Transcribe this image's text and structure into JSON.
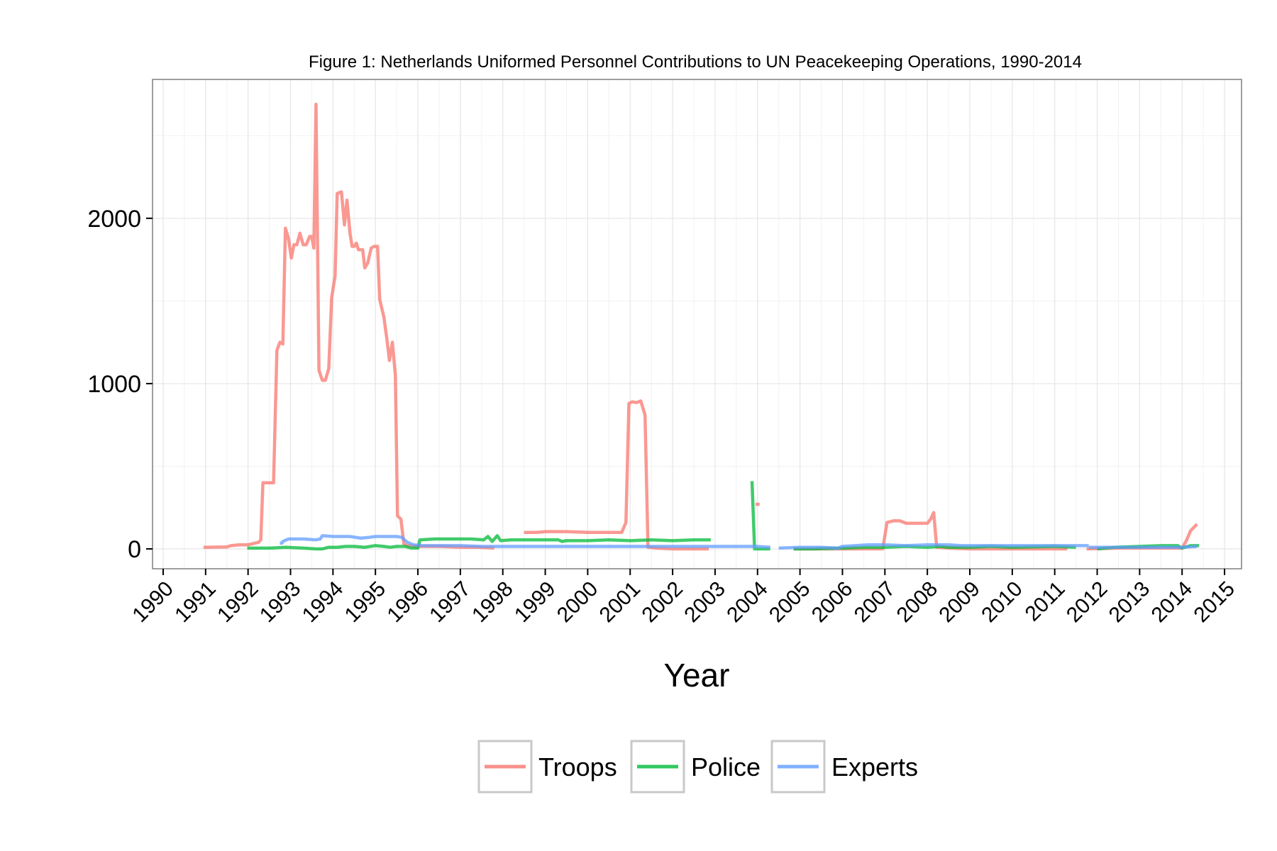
{
  "chart_data": {
    "type": "line",
    "title": "Figure 1: Netherlands Uniformed Personnel Contributions to UN Peacekeeping Operations, 1990-2014",
    "xlabel": "Year",
    "ylabel": "",
    "xlim": [
      1989.75,
      2015.4
    ],
    "ylim": [
      -120,
      2840
    ],
    "x_ticks": [
      "1990",
      "1991",
      "1992",
      "1993",
      "1994",
      "1995",
      "1996",
      "1997",
      "1998",
      "1999",
      "2000",
      "2001",
      "2002",
      "2003",
      "2004",
      "2005",
      "2006",
      "2007",
      "2008",
      "2009",
      "2010",
      "2011",
      "2012",
      "2013",
      "2014",
      "2015"
    ],
    "y_ticks": [
      0,
      1000,
      2000
    ],
    "grid": true,
    "legend_position": "bottom",
    "series": [
      {
        "name": "Troops",
        "color": "#F8766D",
        "segments": [
          [
            [
              1990.95,
              10
            ],
            [
              1991.5,
              12
            ],
            [
              1991.6,
              20
            ],
            [
              1991.8,
              25
            ],
            [
              1992.0,
              25
            ],
            [
              1992.25,
              40
            ],
            [
              1992.3,
              55
            ],
            [
              1992.35,
              400
            ],
            [
              1992.6,
              400
            ],
            [
              1992.68,
              1200
            ],
            [
              1992.75,
              1250
            ],
            [
              1992.82,
              1240
            ],
            [
              1992.88,
              1940
            ],
            [
              1992.95,
              1880
            ],
            [
              1993.02,
              1760
            ],
            [
              1993.08,
              1840
            ],
            [
              1993.15,
              1840
            ],
            [
              1993.22,
              1910
            ],
            [
              1993.3,
              1840
            ],
            [
              1993.37,
              1840
            ],
            [
              1993.45,
              1890
            ],
            [
              1993.5,
              1890
            ],
            [
              1993.55,
              1820
            ],
            [
              1993.6,
              2690
            ],
            [
              1993.67,
              1080
            ],
            [
              1993.75,
              1020
            ],
            [
              1993.82,
              1020
            ],
            [
              1993.9,
              1090
            ],
            [
              1993.97,
              1520
            ],
            [
              1994.05,
              1650
            ],
            [
              1994.1,
              2150
            ],
            [
              1994.2,
              2160
            ],
            [
              1994.27,
              1960
            ],
            [
              1994.33,
              2110
            ],
            [
              1994.4,
              1910
            ],
            [
              1994.45,
              1830
            ],
            [
              1994.5,
              1830
            ],
            [
              1994.55,
              1850
            ],
            [
              1994.6,
              1810
            ],
            [
              1994.7,
              1810
            ],
            [
              1994.75,
              1700
            ],
            [
              1994.82,
              1730
            ],
            [
              1994.9,
              1820
            ],
            [
              1994.97,
              1830
            ],
            [
              1995.05,
              1830
            ],
            [
              1995.1,
              1510
            ],
            [
              1995.2,
              1400
            ],
            [
              1995.28,
              1250
            ],
            [
              1995.33,
              1140
            ],
            [
              1995.4,
              1250
            ],
            [
              1995.47,
              1050
            ],
            [
              1995.52,
              200
            ],
            [
              1995.6,
              180
            ],
            [
              1995.67,
              30
            ],
            [
              1995.75,
              20
            ],
            [
              1996.0,
              15
            ],
            [
              1996.5,
              15
            ],
            [
              1997.0,
              10
            ],
            [
              1997.4,
              10
            ],
            [
              1997.8,
              5
            ]
          ],
          [
            [
              1998.5,
              100
            ],
            [
              1998.8,
              100
            ],
            [
              1999.0,
              105
            ],
            [
              1999.5,
              105
            ],
            [
              2000.0,
              100
            ],
            [
              2000.4,
              100
            ],
            [
              2000.8,
              100
            ],
            [
              2000.9,
              160
            ],
            [
              2000.97,
              880
            ],
            [
              2001.05,
              890
            ],
            [
              2001.15,
              885
            ],
            [
              2001.25,
              895
            ],
            [
              2001.35,
              810
            ],
            [
              2001.42,
              10
            ],
            [
              2001.6,
              5
            ],
            [
              2002.0,
              0
            ],
            [
              2002.5,
              0
            ],
            [
              2002.85,
              0
            ]
          ],
          [
            [
              2003.95,
              270
            ],
            [
              2004.05,
              270
            ]
          ],
          [
            [
              2004.85,
              0
            ],
            [
              2005.5,
              0
            ],
            [
              2006.0,
              0
            ],
            [
              2006.6,
              0
            ],
            [
              2006.95,
              0
            ],
            [
              2007.05,
              160
            ],
            [
              2007.2,
              170
            ],
            [
              2007.35,
              170
            ],
            [
              2007.5,
              155
            ],
            [
              2007.7,
              155
            ],
            [
              2008.0,
              155
            ],
            [
              2008.08,
              180
            ],
            [
              2008.15,
              220
            ],
            [
              2008.22,
              10
            ],
            [
              2008.5,
              5
            ],
            [
              2009.0,
              0
            ],
            [
              2010.0,
              0
            ],
            [
              2010.5,
              0
            ],
            [
              2011.0,
              0
            ],
            [
              2011.3,
              0
            ]
          ],
          [
            [
              2011.75,
              0
            ],
            [
              2012.5,
              5
            ],
            [
              2013.0,
              5
            ],
            [
              2013.5,
              5
            ],
            [
              2014.0,
              5
            ],
            [
              2014.1,
              50
            ],
            [
              2014.2,
              110
            ],
            [
              2014.35,
              150
            ]
          ]
        ]
      },
      {
        "name": "Police",
        "color": "#00BA38",
        "segments": [
          [
            [
              1991.98,
              5
            ],
            [
              1992.5,
              5
            ],
            [
              1992.9,
              10
            ],
            [
              1993.3,
              5
            ],
            [
              1993.6,
              0
            ],
            [
              1993.75,
              0
            ],
            [
              1993.9,
              10
            ],
            [
              1994.1,
              10
            ],
            [
              1994.3,
              15
            ],
            [
              1994.5,
              15
            ],
            [
              1994.75,
              10
            ],
            [
              1995.0,
              20
            ],
            [
              1995.2,
              15
            ],
            [
              1995.35,
              10
            ],
            [
              1995.5,
              15
            ],
            [
              1995.7,
              15
            ],
            [
              1995.85,
              5
            ],
            [
              1996.0,
              5
            ],
            [
              1996.05,
              55
            ],
            [
              1996.4,
              60
            ],
            [
              1996.8,
              60
            ],
            [
              1997.25,
              60
            ],
            [
              1997.55,
              55
            ],
            [
              1997.65,
              75
            ],
            [
              1997.75,
              45
            ],
            [
              1997.87,
              80
            ],
            [
              1997.95,
              50
            ],
            [
              1998.2,
              55
            ],
            [
              1998.6,
              55
            ],
            [
              1999.0,
              55
            ],
            [
              1999.3,
              55
            ],
            [
              1999.4,
              45
            ],
            [
              1999.5,
              50
            ],
            [
              1999.7,
              50
            ],
            [
              2000.0,
              50
            ],
            [
              2000.5,
              55
            ],
            [
              2001.0,
              50
            ],
            [
              2001.5,
              55
            ],
            [
              2002.0,
              50
            ],
            [
              2002.5,
              55
            ],
            [
              2002.9,
              55
            ]
          ],
          [
            [
              2003.87,
              410
            ],
            [
              2003.93,
              0
            ],
            [
              2004.3,
              0
            ]
          ],
          [
            [
              2004.85,
              0
            ],
            [
              2005.3,
              0
            ],
            [
              2006.0,
              5
            ],
            [
              2006.5,
              10
            ],
            [
              2007.0,
              10
            ],
            [
              2007.5,
              15
            ],
            [
              2008.0,
              10
            ],
            [
              2008.3,
              15
            ],
            [
              2008.5,
              10
            ],
            [
              2009.0,
              10
            ],
            [
              2009.5,
              15
            ],
            [
              2010.0,
              10
            ],
            [
              2011.0,
              15
            ],
            [
              2011.5,
              10
            ]
          ],
          [
            [
              2012.0,
              0
            ],
            [
              2012.2,
              5
            ],
            [
              2012.4,
              10
            ],
            [
              2013.0,
              15
            ],
            [
              2013.5,
              20
            ],
            [
              2013.9,
              20
            ],
            [
              2014.0,
              5
            ],
            [
              2014.2,
              20
            ],
            [
              2014.4,
              20
            ]
          ]
        ]
      },
      {
        "name": "Experts",
        "color": "#619CFF",
        "segments": [
          [
            [
              1992.75,
              35
            ],
            [
              1992.8,
              35
            ],
            [
              1992.82,
              45
            ],
            [
              1992.95,
              60
            ],
            [
              1993.3,
              60
            ],
            [
              1993.6,
              55
            ],
            [
              1993.7,
              60
            ],
            [
              1993.75,
              80
            ],
            [
              1994.0,
              75
            ],
            [
              1994.4,
              75
            ],
            [
              1994.65,
              65
            ],
            [
              1994.85,
              70
            ],
            [
              1995.0,
              75
            ],
            [
              1995.5,
              75
            ],
            [
              1995.62,
              70
            ],
            [
              1995.75,
              40
            ],
            [
              1995.9,
              25
            ],
            [
              1996.1,
              20
            ],
            [
              1996.5,
              20
            ],
            [
              1997.0,
              20
            ],
            [
              1997.5,
              15
            ],
            [
              1998.0,
              15
            ],
            [
              1999.0,
              15
            ],
            [
              2000.0,
              15
            ],
            [
              2001.0,
              15
            ],
            [
              2002.0,
              15
            ],
            [
              2003.0,
              15
            ],
            [
              2004.0,
              15
            ],
            [
              2004.3,
              10
            ]
          ],
          [
            [
              2004.5,
              5
            ],
            [
              2005.0,
              10
            ],
            [
              2005.5,
              10
            ],
            [
              2005.9,
              5
            ],
            [
              2006.0,
              15
            ],
            [
              2006.3,
              20
            ],
            [
              2006.6,
              25
            ],
            [
              2007.0,
              25
            ],
            [
              2007.5,
              20
            ],
            [
              2008.0,
              25
            ],
            [
              2008.5,
              25
            ],
            [
              2008.8,
              20
            ],
            [
              2009.0,
              20
            ],
            [
              2009.5,
              20
            ],
            [
              2010.0,
              20
            ],
            [
              2010.5,
              20
            ],
            [
              2011.0,
              20
            ],
            [
              2011.5,
              20
            ],
            [
              2011.8,
              20
            ]
          ],
          [
            [
              2011.8,
              10
            ],
            [
              2012.5,
              10
            ],
            [
              2013.0,
              10
            ],
            [
              2013.5,
              10
            ],
            [
              2014.0,
              10
            ],
            [
              2014.35,
              15
            ]
          ]
        ]
      }
    ]
  }
}
